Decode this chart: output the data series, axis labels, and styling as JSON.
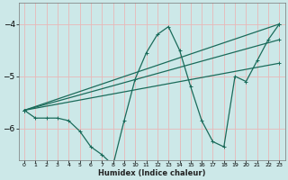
{
  "xlabel": "Humidex (Indice chaleur)",
  "ylabel": "",
  "bg_color": "#cce8e8",
  "grid_color": "#e8b8b8",
  "line_color": "#1a6b5a",
  "xlim": [
    -0.5,
    23.5
  ],
  "ylim": [
    -6.6,
    -3.6
  ],
  "yticks": [
    -6,
    -5,
    -4
  ],
  "xticks": [
    0,
    1,
    2,
    3,
    4,
    5,
    6,
    7,
    8,
    9,
    10,
    11,
    12,
    13,
    14,
    15,
    16,
    17,
    18,
    19,
    20,
    21,
    22,
    23
  ],
  "series_main": [
    0,
    -5.65,
    1,
    -5.8,
    2,
    -5.8,
    3,
    -5.8,
    4,
    -5.85,
    5,
    -6.05,
    6,
    -6.35,
    7,
    -6.5,
    8,
    -6.7,
    9,
    -5.85,
    10,
    -5.05,
    11,
    -4.55,
    12,
    -4.2,
    13,
    -4.05,
    14,
    -4.5,
    15,
    -5.2,
    16,
    -5.85,
    17,
    -6.25,
    18,
    -6.35,
    19,
    -5.0,
    20,
    -5.1,
    21,
    -4.7,
    22,
    -4.3,
    23,
    -4.0
  ],
  "series_lines": [
    {
      "x": [
        0,
        23
      ],
      "y": [
        -5.65,
        -4.0
      ],
      "markers": [
        0,
        23
      ]
    },
    {
      "x": [
        0,
        23
      ],
      "y": [
        -5.65,
        -4.3
      ],
      "markers": [
        0,
        23
      ]
    },
    {
      "x": [
        0,
        23
      ],
      "y": [
        -5.65,
        -4.75
      ],
      "markers": [
        0,
        23
      ]
    }
  ]
}
